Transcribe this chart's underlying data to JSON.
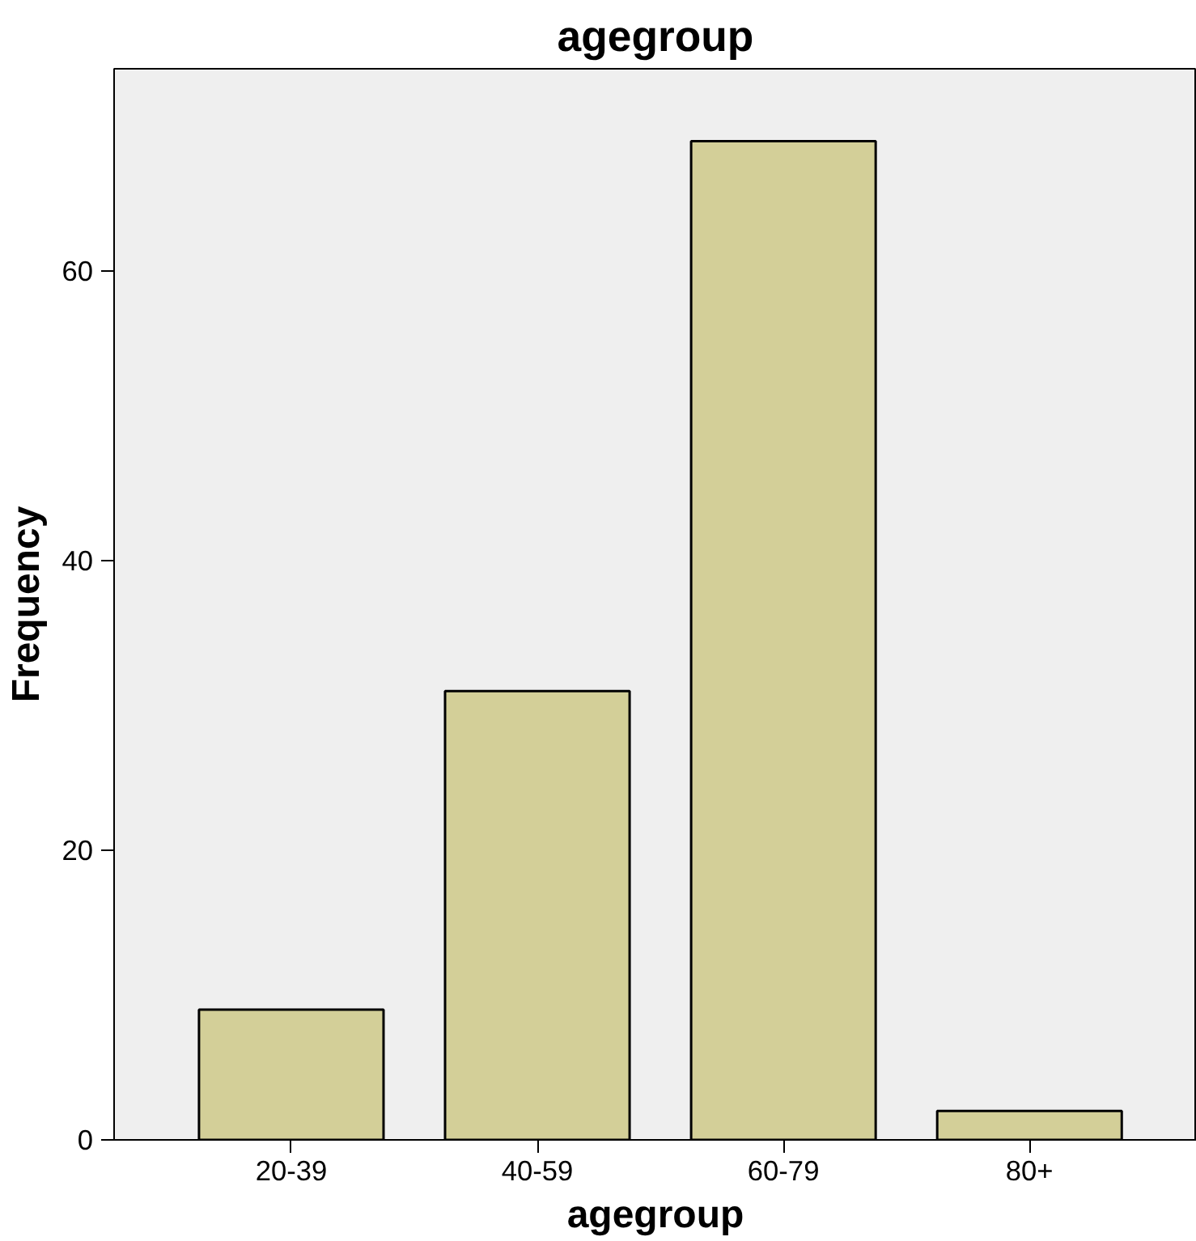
{
  "chart_data": {
    "type": "bar",
    "title": "agegroup",
    "xlabel": "agegroup",
    "ylabel": "Frequency",
    "categories": [
      "20-39",
      "40-59",
      "60-79",
      "80+"
    ],
    "values": [
      9,
      31,
      69,
      2
    ],
    "color": "#d3cf98",
    "ylim": [
      0,
      74
    ],
    "yticks": [
      0,
      20,
      40,
      60
    ],
    "grid": false
  }
}
